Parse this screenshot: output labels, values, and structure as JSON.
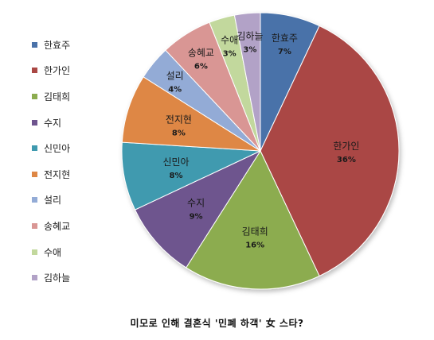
{
  "chart_data": {
    "type": "pie",
    "title": "미모로 인해 결혼식 '민폐 하객' 女 스타?",
    "legend_position": "left",
    "slices": [
      {
        "label": "한효주",
        "value": 7,
        "value_label": "7%",
        "color": "#4a72a9"
      },
      {
        "label": "한가인",
        "value": 36,
        "value_label": "36%",
        "color": "#aa4744"
      },
      {
        "label": "김태희",
        "value": 16,
        "value_label": "16%",
        "color": "#8cac4f"
      },
      {
        "label": "수지",
        "value": 9,
        "value_label": "9%",
        "color": "#6e548e"
      },
      {
        "label": "신민아",
        "value": 8,
        "value_label": "8%",
        "color": "#3f9aaf"
      },
      {
        "label": "전지현",
        "value": 8,
        "value_label": "8%",
        "color": "#de8745"
      },
      {
        "label": "설리",
        "value": 4,
        "value_label": "4%",
        "color": "#93abd6"
      },
      {
        "label": "송혜교",
        "value": 6,
        "value_label": "6%",
        "color": "#d99694"
      },
      {
        "label": "수애",
        "value": 3,
        "value_label": "3%",
        "color": "#c2d89d"
      },
      {
        "label": "김하늘",
        "value": 3,
        "value_label": "3%",
        "color": "#b2a2c7"
      }
    ]
  }
}
